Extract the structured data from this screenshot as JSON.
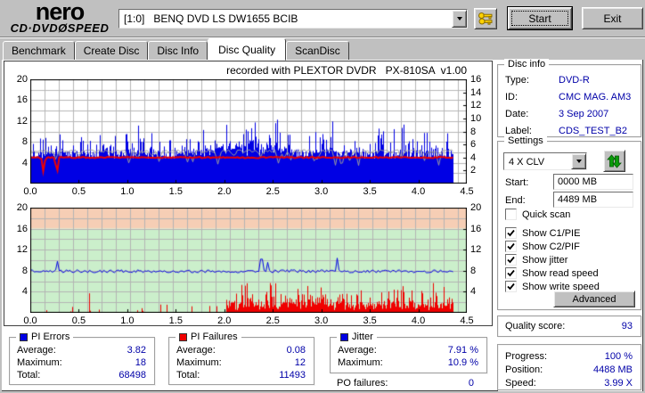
{
  "header": {
    "logo_line1": "nero",
    "logo_line2": "CD·DVDØSPEED",
    "drive": "[1:0]   BENQ DVD LS DW1655 BCIB",
    "start_label": "Start",
    "exit_label": "Exit"
  },
  "tabs": {
    "items": [
      "Benchmark",
      "Create Disc",
      "Disc Info",
      "Disc Quality",
      "ScanDisc"
    ],
    "active": "Disc Quality"
  },
  "disc_info": {
    "title": "Disc info",
    "rows": [
      {
        "label": "Type:",
        "value": "DVD-R"
      },
      {
        "label": "ID:",
        "value": "CMC MAG. AM3"
      },
      {
        "label": "Date:",
        "value": "3 Sep 2007"
      },
      {
        "label": "Label:",
        "value": "CDS_TEST_B2"
      }
    ]
  },
  "settings": {
    "title": "Settings",
    "speed": "4 X CLV",
    "start_label": "Start:",
    "start_value": "0000 MB",
    "end_label": "End:",
    "end_value": "4489 MB",
    "checkboxes": [
      {
        "label": "Quick scan",
        "checked": false
      },
      {
        "label": "Show C1/PIE",
        "checked": true
      },
      {
        "label": "Show C2/PIF",
        "checked": true
      },
      {
        "label": "Show jitter",
        "checked": true
      },
      {
        "label": "Show read speed",
        "checked": true
      },
      {
        "label": "Show write speed",
        "checked": true
      }
    ],
    "advanced_label": "Advanced"
  },
  "quality": {
    "label": "Quality score:",
    "value": "93"
  },
  "progress": {
    "rows": [
      {
        "label": "Progress:",
        "value": "100 %"
      },
      {
        "label": "Position:",
        "value": "4488 MB"
      },
      {
        "label": "Speed:",
        "value": "3.99 X"
      }
    ]
  },
  "stats": {
    "pi_errors": {
      "title": "PI Errors",
      "color": "#0000e4",
      "rows": [
        {
          "label": "Average:",
          "value": "3.82"
        },
        {
          "label": "Maximum:",
          "value": "18"
        },
        {
          "label": "Total:",
          "value": "68498"
        }
      ]
    },
    "pi_failures": {
      "title": "PI Failures",
      "color": "#f00000",
      "rows": [
        {
          "label": "Average:",
          "value": "0.08"
        },
        {
          "label": "Maximum:",
          "value": "12"
        },
        {
          "label": "Total:",
          "value": "11493"
        }
      ]
    },
    "jitter": {
      "title": "Jitter",
      "color": "#0000e4",
      "rows": [
        {
          "label": "Average:",
          "value": "7.91 %"
        },
        {
          "label": "Maximum:",
          "value": "10.9 %"
        }
      ]
    },
    "po_failures": {
      "label": "PO failures:",
      "value": "0"
    }
  },
  "chart_data": [
    {
      "id": "pi-errors-chart",
      "type": "area",
      "title": "recorded with PLEXTOR DVDR   PX-810SA  v1.00",
      "seed": 42,
      "bg": "#ffffff",
      "grid": "#b6b6b6",
      "x": {
        "min": 0,
        "max": 4.5,
        "data_end": 4.35,
        "ticks": [
          "0.0",
          "0.5",
          "1.0",
          "1.5",
          "2.0",
          "2.5",
          "3.0",
          "3.5",
          "4.0",
          "4.5"
        ]
      },
      "y_left": {
        "max": 20,
        "ticks": [
          20,
          16,
          12,
          8,
          4
        ]
      },
      "y_right": {
        "max": 16,
        "ticks": [
          16,
          14,
          12,
          10,
          8,
          6,
          4,
          2
        ]
      },
      "series": [
        {
          "name": "PI errors",
          "type": "spike-fill",
          "color": "#0000e4",
          "base": 5.1,
          "typical_max": 12,
          "peak": {
            "x": 2.25,
            "max": 15
          }
        },
        {
          "name": "read speed",
          "type": "line",
          "color": "#9c9c9c",
          "value": 6.25,
          "dips_to": 4.5
        },
        {
          "name": "write speed",
          "type": "line",
          "color": "#f00000",
          "value": 5.0,
          "dips": [
            {
              "x": 0.13,
              "to": 2.2
            },
            {
              "x": 0.27,
              "to": 1.7
            }
          ]
        }
      ]
    },
    {
      "id": "jitter-pif-chart",
      "type": "mixed",
      "seed": 7,
      "grid": "#b4b4b4",
      "x": {
        "min": 0,
        "max": 4.5,
        "data_end": 4.35,
        "ticks": [
          "0.0",
          "0.5",
          "1.0",
          "1.5",
          "2.0",
          "2.5",
          "3.0",
          "3.5",
          "4.0",
          "4.5"
        ]
      },
      "y_left": {
        "max": 20,
        "ticks": [
          20,
          16,
          12,
          8,
          4
        ]
      },
      "y_right": {
        "max": 20,
        "ticks": [
          20,
          16,
          12,
          8,
          4
        ]
      },
      "bands": [
        {
          "from": 16,
          "to": 20,
          "color": "#f6ceb5"
        },
        {
          "from": 0,
          "to": 16,
          "color": "#cbefcb"
        }
      ],
      "series": [
        {
          "name": "PI failures",
          "type": "spike-fill",
          "color": "#f00000",
          "sparse_until": 2.02,
          "sparse_max": 2,
          "dense_base": 1.6,
          "dense_max": 7.8
        },
        {
          "name": "jitter",
          "type": "line",
          "color": "#0000e4",
          "value": 7.9,
          "spikes": [
            {
              "x": 0.28,
              "v": 9.8
            },
            {
              "x": 2.38,
              "v": 10.2
            },
            {
              "x": 2.44,
              "v": 9.6
            },
            {
              "x": 3.16,
              "v": 10.4
            }
          ]
        }
      ]
    }
  ]
}
